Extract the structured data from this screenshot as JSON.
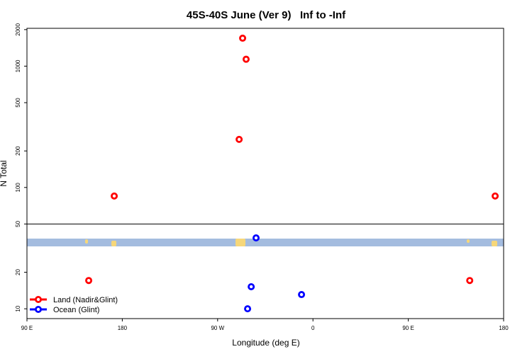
{
  "chart_data": {
    "type": "scatter",
    "title": "45S-40S June (Ver 9)   Inf to -Inf",
    "x_label": "Longitude (deg E)",
    "y_label": "N Total",
    "y_log": true,
    "xlim": [
      90,
      540
    ],
    "ylim": [
      8.3,
      2050
    ],
    "xticks": [
      {
        "value": 90,
        "label": "90 E"
      },
      180,
      {
        "value": 270,
        "label": "90 W"
      },
      {
        "value": 360,
        "label": "0"
      },
      {
        "value": 450,
        "label": "90 E"
      },
      {
        "value": 540,
        "label": "180"
      }
    ],
    "yticks": [
      10,
      20,
      50,
      100,
      200,
      500,
      1000,
      2000
    ],
    "hline": 50,
    "legend": "bottom-left",
    "series": [
      {
        "name": "Land (Nadir&Glint)",
        "color": "#ff0000",
        "x": [
          148.3,
          172.4,
          293.6,
          296.9,
          290.3,
          508,
          532
        ],
        "values": [
          17.1,
          85,
          1700,
          1140,
          249,
          17.1,
          85
        ]
      },
      {
        "name": "Ocean (Glint)",
        "color": "#0000ff",
        "x": [
          306.3,
          301.7,
          298.3,
          349.2
        ],
        "values": [
          38.4,
          15.2,
          10,
          13.1
        ]
      }
    ]
  }
}
